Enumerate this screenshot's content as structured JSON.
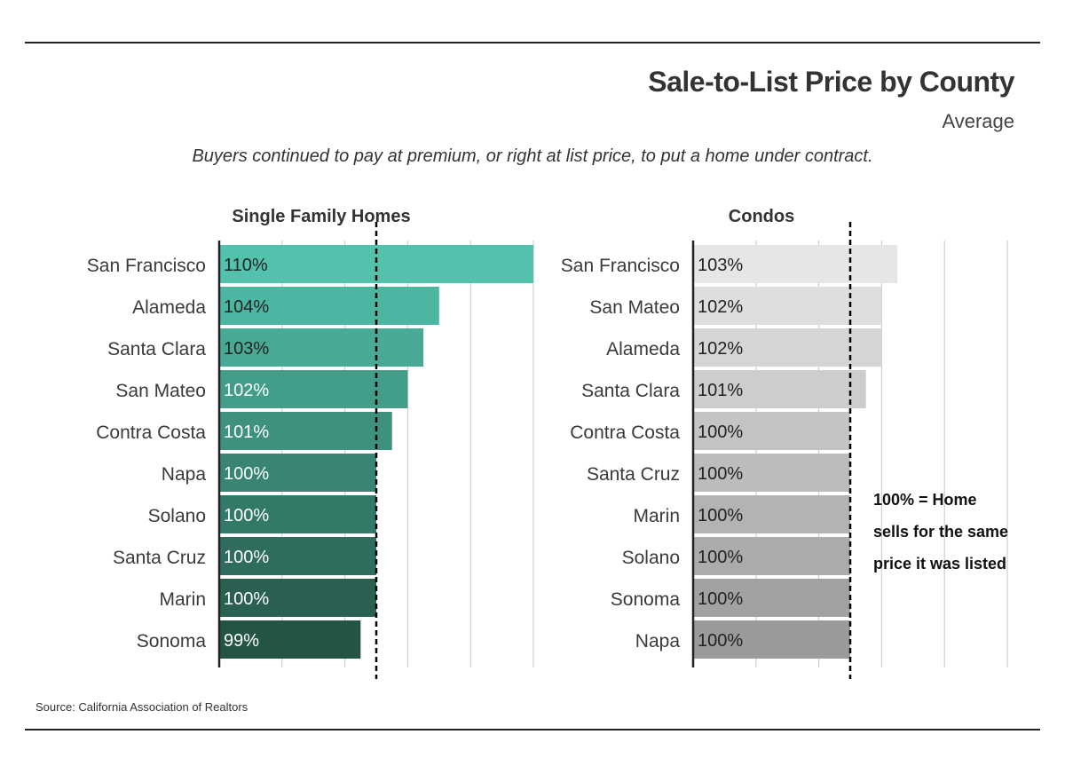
{
  "header": {
    "title": "Sale-to-List Price by County",
    "subtitle": "Average",
    "note": "Buyers continued to pay at premium, or right at list price, to put a home under contract."
  },
  "footer": {
    "source": "Source:  California Association of Realtors"
  },
  "annotation": [
    "100% = Home",
    "sells for the same",
    "price it was listed"
  ],
  "colors": {
    "sfh_top": "#52c2ad",
    "sfh_bottom": "#245446",
    "condo_top": "#e6e6e6",
    "condo_bottom": "#9a9a9a",
    "grid": "#cfcfcf",
    "axis": "#222222",
    "reference_line": "#000000"
  },
  "chart_data": [
    {
      "type": "bar",
      "orientation": "horizontal",
      "title": "Single Family Homes",
      "categories": [
        "San Francisco",
        "Alameda",
        "Santa Clara",
        "San Mateo",
        "Contra Costa",
        "Napa",
        "Solano",
        "Santa Cruz",
        "Marin",
        "Sonoma"
      ],
      "values": [
        110,
        104,
        103,
        102,
        101,
        100,
        100,
        100,
        100,
        99
      ],
      "labels": [
        "110%",
        "104%",
        "103%",
        "102%",
        "101%",
        "100%",
        "100%",
        "100%",
        "100%",
        "99%"
      ],
      "unit": "%",
      "xlim": [
        90,
        110
      ],
      "reference_line": 100,
      "grid": true
    },
    {
      "type": "bar",
      "orientation": "horizontal",
      "title": "Condos",
      "categories": [
        "San Francisco",
        "San Mateo",
        "Alameda",
        "Santa Clara",
        "Contra Costa",
        "Santa Cruz",
        "Marin",
        "Solano",
        "Sonoma",
        "Napa"
      ],
      "values": [
        103,
        102,
        102,
        101,
        100,
        100,
        100,
        100,
        100,
        100
      ],
      "labels": [
        "103%",
        "102%",
        "102%",
        "101%",
        "100%",
        "100%",
        "100%",
        "100%",
        "100%",
        "100%"
      ],
      "unit": "%",
      "xlim": [
        90,
        110
      ],
      "reference_line": 100,
      "grid": true
    }
  ]
}
